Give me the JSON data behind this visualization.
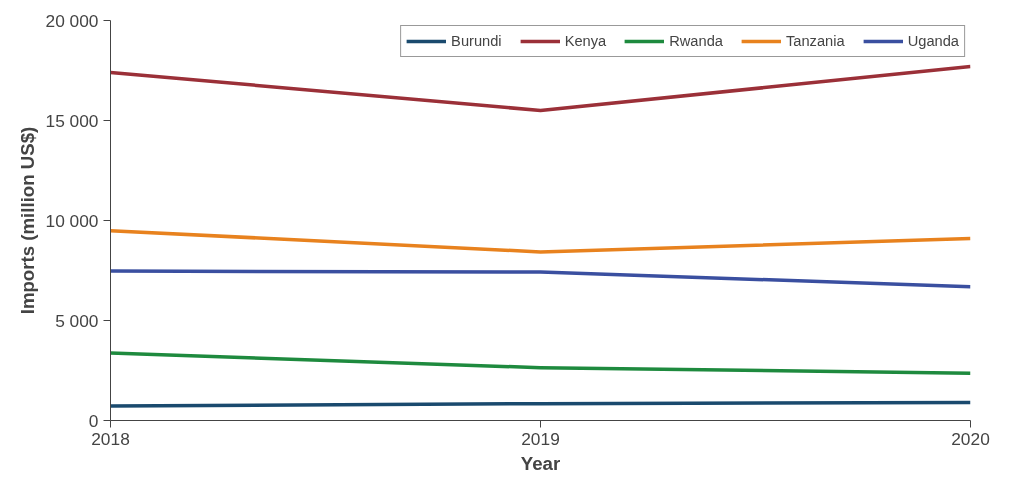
{
  "chart_data": {
    "type": "line",
    "xlabel": "Year",
    "ylabel": "Imports (million US$)",
    "x": [
      2018,
      2019,
      2020
    ],
    "series": [
      {
        "name": "Burundi",
        "color": "#1a4a6e",
        "values": [
          730,
          840,
          900
        ]
      },
      {
        "name": "Kenya",
        "color": "#9b3038",
        "values": [
          17400,
          15500,
          17700
        ]
      },
      {
        "name": "Rwanda",
        "color": "#1e8a3e",
        "values": [
          3370,
          2640,
          2360
        ]
      },
      {
        "name": "Tanzania",
        "color": "#e8821e",
        "values": [
          9490,
          8430,
          9100
        ]
      },
      {
        "name": "Uganda",
        "color": "#3a4fa0",
        "values": [
          7470,
          7420,
          6690
        ]
      }
    ],
    "xlim": [
      2018,
      2020
    ],
    "xticks": [
      2018,
      2019,
      2020
    ],
    "ylim": [
      0,
      20000
    ],
    "yticks": [
      {
        "value": 0,
        "label": "0"
      },
      {
        "value": 5000,
        "label": "5 000"
      },
      {
        "value": 10000,
        "label": "10 000"
      },
      {
        "value": 15000,
        "label": "15 000"
      },
      {
        "value": 20000,
        "label": "20 000"
      }
    ],
    "grid": false,
    "legend": "top right",
    "marker": "none",
    "line_style": "solid"
  }
}
